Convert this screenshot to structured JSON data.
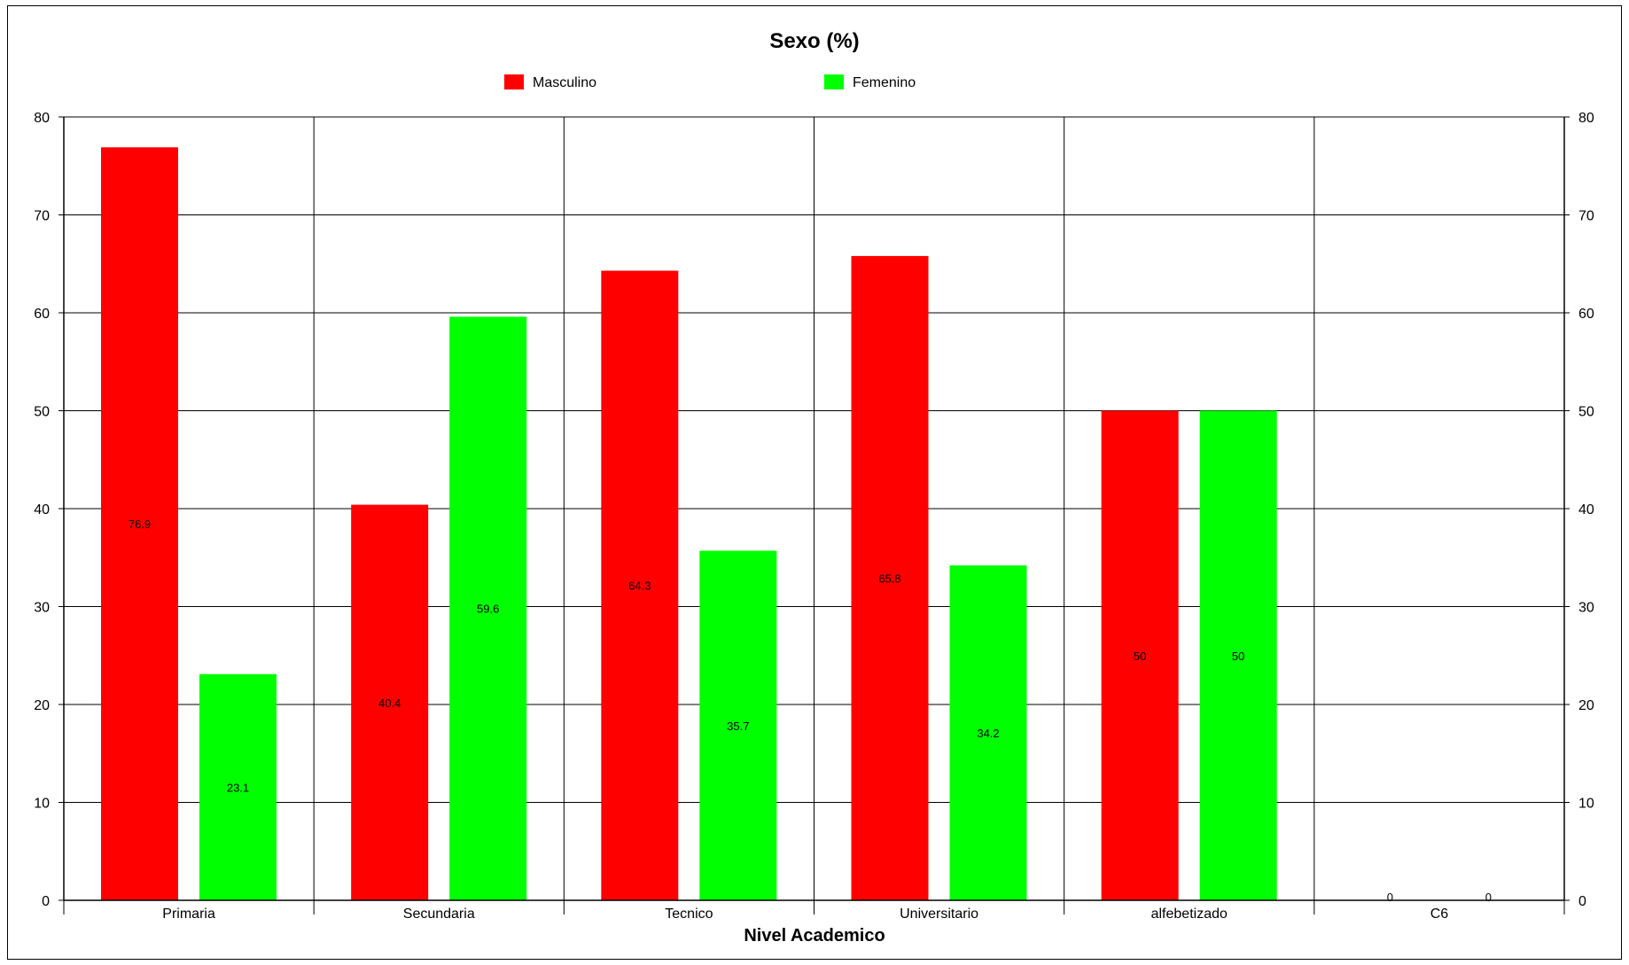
{
  "chart_data": {
    "type": "bar",
    "title": "Sexo (%)",
    "xlabel": "Nivel Academico",
    "ylabel": "",
    "categories": [
      "Primaria",
      "Secundaria",
      "Tecnico",
      "Universitario",
      "alfebetizado",
      "C6"
    ],
    "series": [
      {
        "name": "Masculino",
        "color": "#ff0000",
        "values": [
          76.9,
          40.4,
          64.3,
          65.8,
          50,
          0
        ]
      },
      {
        "name": "Femenino",
        "color": "#00ff00",
        "values": [
          23.1,
          59.6,
          35.7,
          34.2,
          50,
          0
        ]
      }
    ],
    "data_labels": [
      [
        "76.9",
        "40.4",
        "64.3",
        "65.8",
        "50",
        "0"
      ],
      [
        "23.1",
        "59.6",
        "35.7",
        "34.2",
        "50",
        "0"
      ]
    ],
    "ylim": [
      0,
      80
    ],
    "yticks": [
      "0",
      "10",
      "20",
      "30",
      "40",
      "50",
      "60",
      "70",
      "80"
    ],
    "grid": true,
    "legend_position": "top-center",
    "secondary_y_axis": true
  }
}
